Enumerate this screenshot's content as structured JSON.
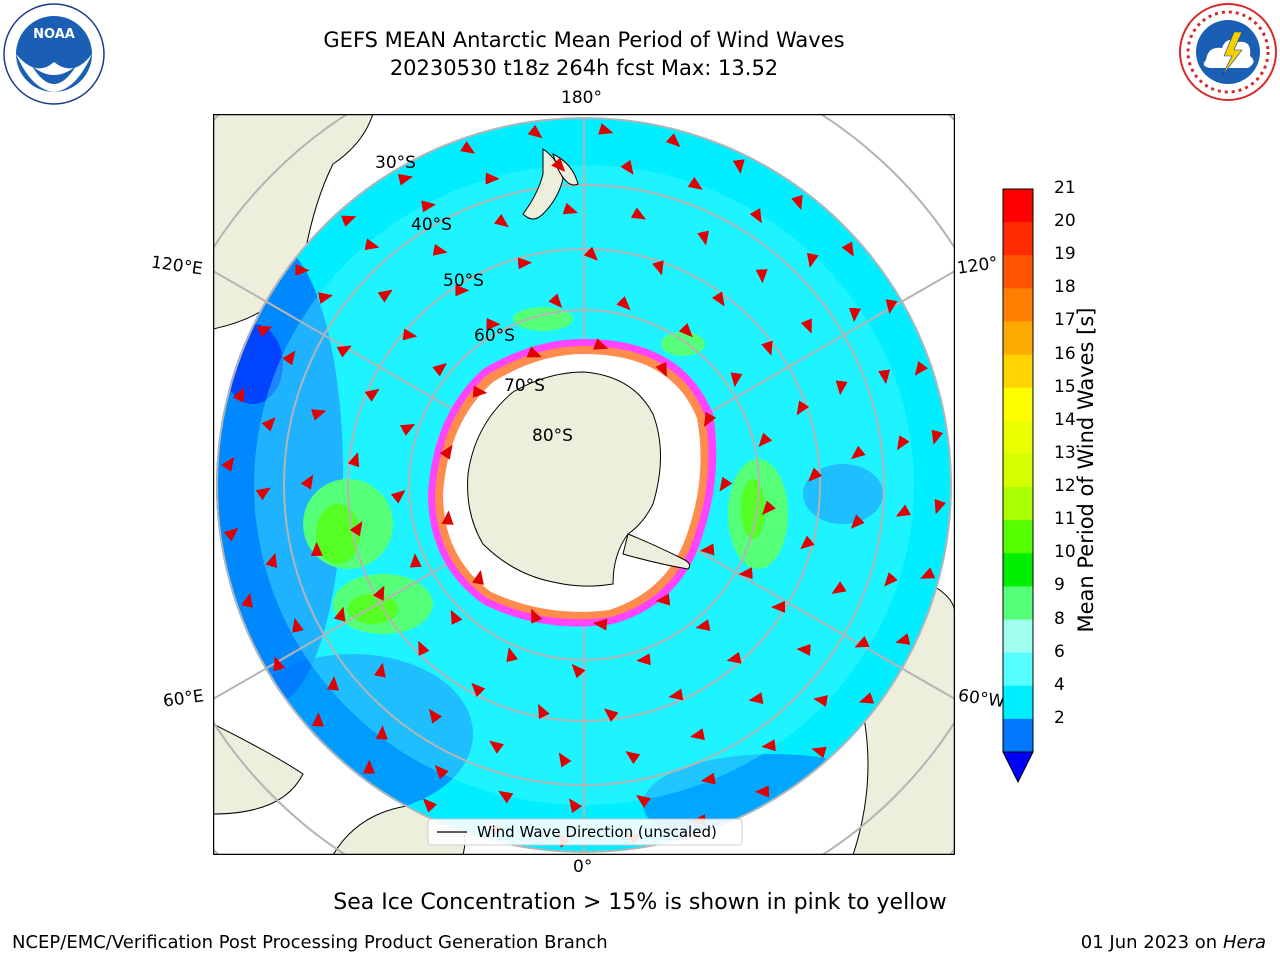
{
  "title": {
    "line1": "GEFS MEAN Antarctic Mean Period of Wind Waves",
    "line2": "20230530 t18z 264h fcst   Max: 13.52"
  },
  "logos": {
    "noara": "noaa-logo",
    "nws": "nws-logo"
  },
  "map": {
    "projection": "south-polar-stereographic",
    "lon_labels": {
      "top": "180°",
      "bottom": "0°",
      "left_upper": "120°E",
      "left_lower": "60°E",
      "right_upper": "120°",
      "right_lower": "60°W"
    },
    "lat_labels": [
      "30°S",
      "40°S",
      "50°S",
      "60°S",
      "70°S",
      "80°S"
    ],
    "legend": "Wind Wave Direction (unscaled)"
  },
  "colorbar": {
    "label": "Mean Period of Wind Waves [s]",
    "ticks": [
      "21",
      "20",
      "19",
      "18",
      "17",
      "16",
      "15",
      "14",
      "13",
      "12",
      "11",
      "10",
      "9",
      "8",
      "6",
      "4",
      "2"
    ],
    "colors": [
      "#ff0000",
      "#ff2a00",
      "#ff5500",
      "#ff8000",
      "#ffaa00",
      "#ffd400",
      "#ffff00",
      "#eaff00",
      "#d4ff00",
      "#aaff00",
      "#55ff00",
      "#00ee00",
      "#55ff77",
      "#a0ffef",
      "#55ffff",
      "#00eeff",
      "#0077ff"
    ],
    "under_color": "#0000ff"
  },
  "notes": {
    "sea_ice": "Sea Ice Concentration > 15% is shown in pink to yellow"
  },
  "footer": {
    "left": "NCEP/EMC/Verification Post Processing Product Generation Branch",
    "right_date": "01 Jun 2023 on",
    "right_host": "Hera"
  }
}
